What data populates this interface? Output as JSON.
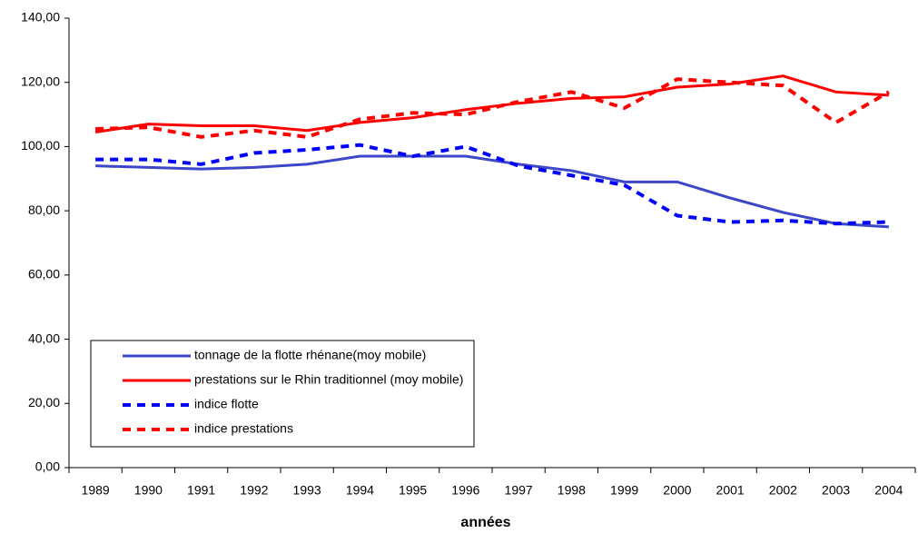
{
  "chart_data": {
    "type": "line",
    "x_label": "années",
    "categories": [
      "1989",
      "1990",
      "1991",
      "1992",
      "1993",
      "1994",
      "1995",
      "1996",
      "1997",
      "1998",
      "1999",
      "2000",
      "2001",
      "2002",
      "2003",
      "2004"
    ],
    "ylim": [
      0,
      140
    ],
    "yticks": [
      {
        "value": 0,
        "label": "0,00"
      },
      {
        "value": 20,
        "label": "20,00"
      },
      {
        "value": 40,
        "label": "40,00"
      },
      {
        "value": 60,
        "label": "60,00"
      },
      {
        "value": 80,
        "label": "80,00"
      },
      {
        "value": 100,
        "label": "100,00"
      },
      {
        "value": 120,
        "label": "120,00"
      },
      {
        "value": 140,
        "label": "140,00"
      }
    ],
    "grid": false,
    "series": [
      {
        "name": "tonnage de la flotte rhénane(moy mobile)",
        "color": "#3c46c8",
        "style": "solid",
        "values": [
          94,
          93.5,
          93,
          93.5,
          94.5,
          97,
          97,
          97,
          94.5,
          92.5,
          89,
          89,
          84,
          79.5,
          76,
          75
        ]
      },
      {
        "name": "prestations sur le Rhin traditionnel (moy mobile)",
        "color": "#ff0000",
        "style": "solid",
        "values": [
          104.5,
          107,
          106.5,
          106.5,
          105,
          107.5,
          109,
          111.5,
          113.5,
          115,
          115.5,
          118.5,
          119.5,
          122,
          117,
          116
        ]
      },
      {
        "name": "indice flotte",
        "color": "#0000ff",
        "style": "dashed",
        "values": [
          96,
          96,
          94.5,
          98,
          99,
          100.5,
          97,
          100,
          94,
          91,
          88,
          78.5,
          76.5,
          77,
          76,
          76.5
        ]
      },
      {
        "name": "indice prestations",
        "color": "#ff0000",
        "style": "dashed",
        "values": [
          105.5,
          106,
          103,
          105,
          103,
          108.5,
          110.5,
          110,
          114,
          117,
          112,
          121,
          120,
          119,
          107.5,
          117
        ]
      }
    ]
  }
}
